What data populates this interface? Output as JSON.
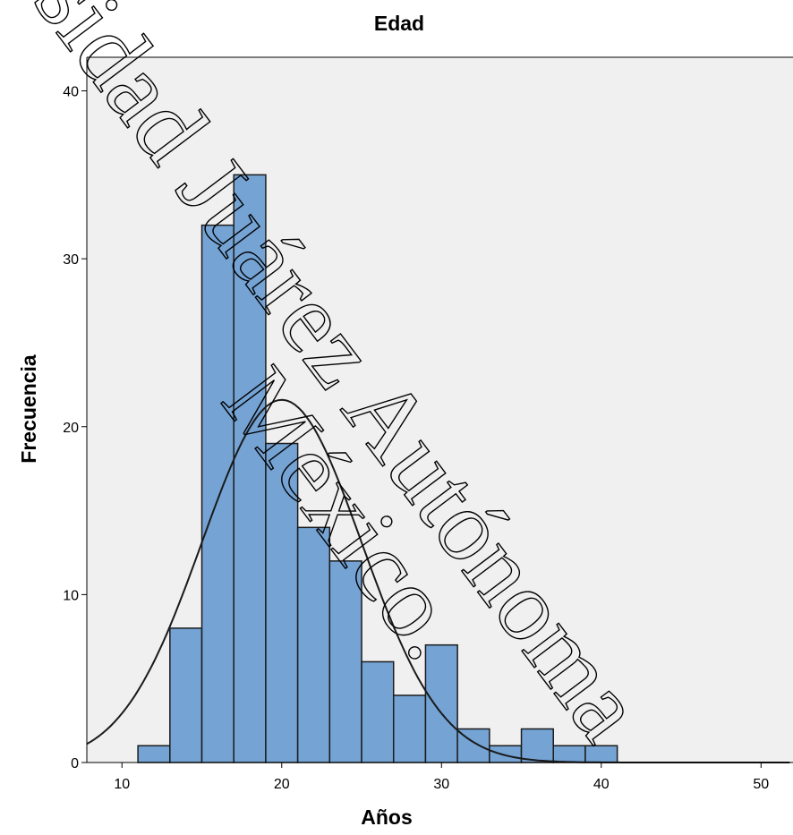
{
  "chart_data": {
    "type": "bar",
    "title": "Edad",
    "xlabel": "Años",
    "ylabel": "Frecuencia",
    "xlim": [
      7.8,
      52
    ],
    "ylim": [
      0,
      42
    ],
    "xticks": [
      10,
      20,
      30,
      40,
      50
    ],
    "yticks": [
      0,
      10,
      20,
      30,
      40
    ],
    "bins": [
      {
        "x0": 11,
        "x1": 13,
        "count": 1
      },
      {
        "x0": 13,
        "x1": 15,
        "count": 8
      },
      {
        "x0": 15,
        "x1": 17,
        "count": 32
      },
      {
        "x0": 17,
        "x1": 19,
        "count": 35
      },
      {
        "x0": 19,
        "x1": 21,
        "count": 19
      },
      {
        "x0": 21,
        "x1": 23,
        "count": 14
      },
      {
        "x0": 23,
        "x1": 25,
        "count": 12
      },
      {
        "x0": 25,
        "x1": 27,
        "count": 6
      },
      {
        "x0": 27,
        "x1": 29,
        "count": 4
      },
      {
        "x0": 29,
        "x1": 31,
        "count": 7
      },
      {
        "x0": 31,
        "x1": 33,
        "count": 2
      },
      {
        "x0": 33,
        "x1": 35,
        "count": 1
      },
      {
        "x0": 35,
        "x1": 37,
        "count": 2
      },
      {
        "x0": 37,
        "x1": 39,
        "count": 1
      },
      {
        "x0": 39,
        "x1": 41,
        "count": 1
      }
    ],
    "normal_curve": {
      "mean": 20.0,
      "sd": 5.0,
      "peak": 21.6
    },
    "grid": false,
    "colors": {
      "bar_fill": "#74a3d4",
      "bar_stroke": "#1c1c1c",
      "plot_bg": "#f0f0f0",
      "curve": "#1a1a1a"
    }
  },
  "watermark": {
    "line1": "sidad Juárez Autónoma",
    "line2": "México."
  }
}
